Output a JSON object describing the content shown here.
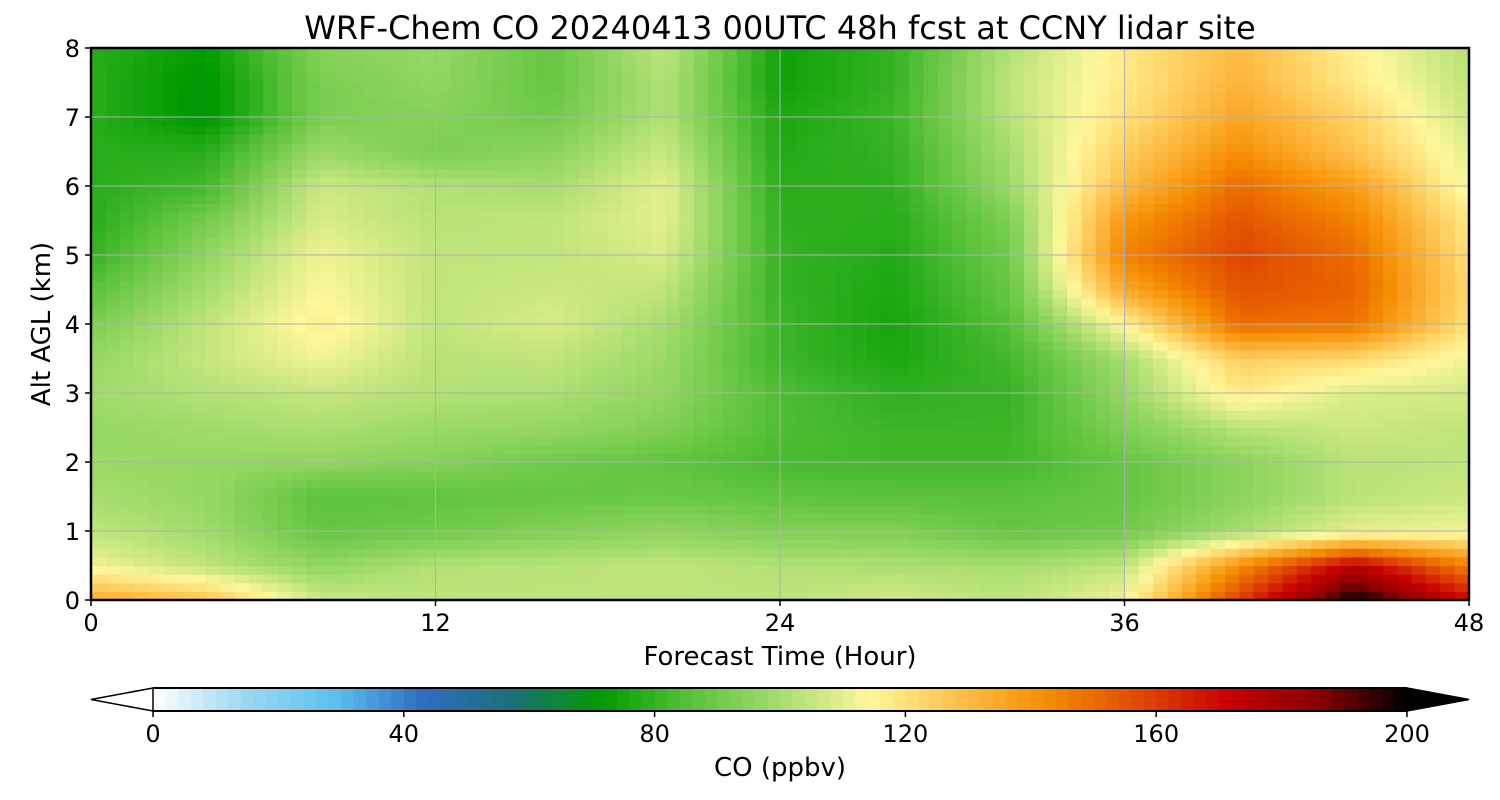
{
  "chart_data": {
    "type": "heatmap",
    "title": "WRF-Chem CO  20240413 00UTC 48h fcst at CCNY lidar site",
    "xlabel": "Forecast Time (Hour)",
    "ylabel": "Alt AGL (km)",
    "xlim": [
      0,
      48
    ],
    "ylim": [
      0,
      8
    ],
    "xticks": [
      0,
      12,
      24,
      36,
      48
    ],
    "yticks": [
      0,
      1,
      2,
      3,
      4,
      5,
      6,
      7,
      8
    ],
    "grid": true,
    "colorbar": {
      "label": "CO  (ppbv)",
      "range": [
        0,
        200
      ],
      "ticks": [
        0,
        40,
        80,
        120,
        160,
        200
      ],
      "extend": "both",
      "orientation": "horizontal",
      "position": "bottom",
      "colors": [
        "#ffffff",
        "#9fd8f2",
        "#5ec2ef",
        "#2f6ec0",
        "#1d6e7a",
        "#009a00",
        "#59c23a",
        "#a6dd6e",
        "#fff79b",
        "#ffc04a",
        "#f58c00",
        "#e04a00",
        "#c80000",
        "#8a0000",
        "#000000"
      ]
    },
    "x": [
      0,
      4,
      8,
      12,
      16,
      20,
      24,
      28,
      32,
      36,
      40,
      44,
      48
    ],
    "y": [
      0,
      0.5,
      1,
      1.5,
      2,
      2.5,
      3,
      3.5,
      4,
      4.5,
      5,
      5.5,
      6,
      6.5,
      7,
      7.5,
      8
    ],
    "z": [
      [
        135,
        128,
        106,
        104,
        104,
        104,
        104,
        107,
        104,
        112,
        160,
        200,
        170
      ],
      [
        112,
        104,
        96,
        102,
        103,
        104,
        102,
        101,
        100,
        104,
        142,
        175,
        145
      ],
      [
        104,
        99,
        88,
        90,
        93,
        96,
        93,
        93,
        88,
        90,
        100,
        110,
        112
      ],
      [
        100,
        97,
        86,
        87,
        88,
        89,
        87,
        86,
        86,
        88,
        95,
        103,
        106
      ],
      [
        98,
        97,
        96,
        94,
        90,
        87,
        83,
        82,
        82,
        88,
        95,
        103,
        104
      ],
      [
        97,
        99,
        101,
        98,
        97,
        93,
        84,
        81,
        81,
        93,
        103,
        106,
        104
      ],
      [
        99,
        102,
        105,
        102,
        101,
        96,
        84,
        79,
        80,
        97,
        118,
        108,
        107
      ],
      [
        97,
        105,
        112,
        103,
        104,
        98,
        81,
        76,
        82,
        100,
        125,
        122,
        112
      ],
      [
        92,
        104,
        117,
        104,
        108,
        100,
        81,
        75,
        85,
        115,
        150,
        148,
        120
      ],
      [
        86,
        100,
        114,
        104,
        106,
        104,
        80,
        76,
        88,
        135,
        155,
        152,
        122
      ],
      [
        80,
        96,
        112,
        104,
        104,
        108,
        80,
        77,
        90,
        145,
        158,
        150,
        120
      ],
      [
        78,
        91,
        108,
        103,
        104,
        110,
        79,
        78,
        92,
        140,
        155,
        145,
        118
      ],
      [
        78,
        82,
        106,
        102,
        100,
        110,
        78,
        79,
        98,
        130,
        150,
        138,
        112
      ],
      [
        78,
        78,
        98,
        92,
        95,
        106,
        77,
        80,
        100,
        125,
        142,
        128,
        110
      ],
      [
        78,
        70,
        92,
        94,
        90,
        102,
        76,
        81,
        103,
        120,
        136,
        124,
        106
      ],
      [
        78,
        70,
        92,
        96,
        88,
        102,
        74,
        80,
        104,
        118,
        132,
        118,
        104
      ],
      [
        78,
        72,
        94,
        97,
        88,
        104,
        74,
        80,
        102,
        118,
        130,
        116,
        102
      ]
    ]
  }
}
